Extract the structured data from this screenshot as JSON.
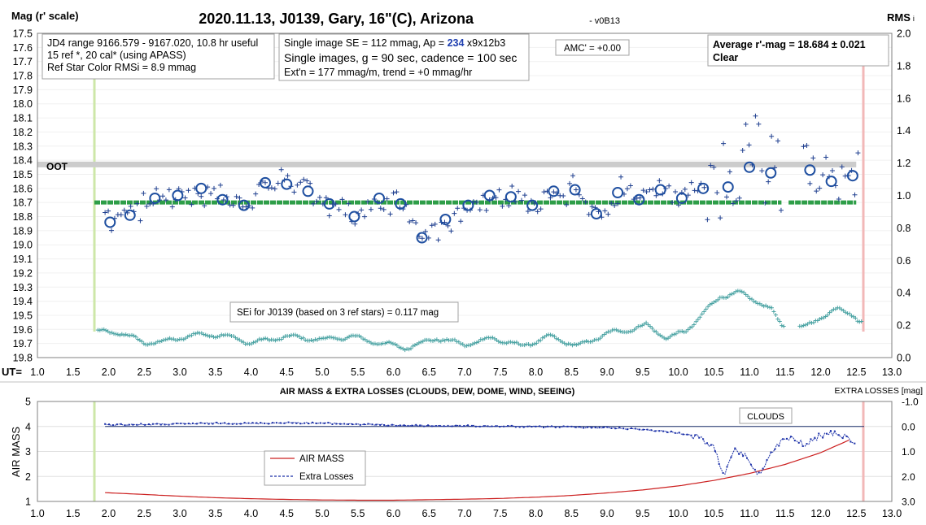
{
  "title": "2020.11.13, J0139, Gary, 16\"(C), Arizona",
  "version": "- v0B13",
  "left_axis_label": "Mag (r' scale)",
  "right_axis_label": "RMS",
  "right_axis_label_suffix": "i",
  "ut_label": "UT=",
  "oot_label": "OOT",
  "info_box_1": [
    "JD4 range 9166.579 - 9167.020, 10.8 hr useful",
    "15 ref *, 20 cal* (using APASS)",
    "Ref Star Color RMSi = 8.9 mmag"
  ],
  "info_box_2": {
    "line1_prefix": "Single image SE = 112 mmag, Ap = ",
    "line1_ap": "234",
    "line1_suffix": " x9x12b3",
    "line2": "Single images, g = 90 sec, cadence = 100 sec",
    "line3": "Ext'n = 177 mmag/m, trend = +0 mmag/hr"
  },
  "amc_label": "AMC' = +0.00",
  "average_box": {
    "line1": "Average r'-mag =  18.684 ± 0.021",
    "line2": "Clear"
  },
  "sei_label": "SEi for J0139 (based on 3 ref stars) = 0.117 mag",
  "bottom_title": "AIR MASS & EXTRA LOSSES (CLOUDS, DEW, DOME, WIND, SEEING)",
  "bottom_left_axis_label": "AIR MASS",
  "bottom_right_axis_label": "EXTRA LOSSES [mag]",
  "clouds_label": "CLOUDS",
  "legend": {
    "air_mass": "AIR MASS",
    "extra_losses": "Extra Losses"
  },
  "colors": {
    "individual": "#1f3f8f",
    "averages": "#1f4fa0",
    "rms": "#4aa3a3",
    "mean_line": "#2e9e48",
    "oot_line": "#cccccc",
    "start_line": "#cde7a8",
    "end_line": "#f2b8b8",
    "air_mass": "#cc2020",
    "extra_losses": "#1a2fa8"
  },
  "chart_data": [
    {
      "type": "scatter",
      "title": "2020.11.13, J0139, Gary, 16\"(C), Arizona",
      "xlabel": "UT",
      "ylabel": "Mag (r' scale)",
      "y2label": "RMS",
      "xlim": [
        1.0,
        13.0
      ],
      "ylim": [
        17.5,
        19.8
      ],
      "y_inverted": true,
      "y2lim": [
        0.0,
        2.0
      ],
      "x_ticks": [
        "1.0",
        "1.5",
        "2.0",
        "2.5",
        "3.0",
        "3.5",
        "4.0",
        "4.5",
        "5.0",
        "5.5",
        "6.0",
        "6.5",
        "7.0",
        "7.5",
        "8.0",
        "8.5",
        "9.0",
        "9.5",
        "10.0",
        "10.5",
        "11.0",
        "11.5",
        "12.0",
        "12.5",
        "13.0"
      ],
      "y_ticks": [
        "17.5",
        "17.6",
        "17.7",
        "17.8",
        "17.9",
        "18.0",
        "18.1",
        "18.2",
        "18.3",
        "18.4",
        "18.5",
        "18.6",
        "18.7",
        "18.8",
        "18.9",
        "19.0",
        "19.1",
        "19.2",
        "19.3",
        "19.4",
        "19.5",
        "19.6",
        "19.7",
        "19.8"
      ],
      "y2_ticks": [
        "0.0",
        "0.2",
        "0.4",
        "0.6",
        "0.8",
        "1.0",
        "1.2",
        "1.4",
        "1.6",
        "1.8",
        "2.0"
      ],
      "oot_level": 18.43,
      "mean_level": 18.7,
      "start_ut": 1.8,
      "end_ut": 12.6,
      "averages": [
        [
          2.02,
          18.84
        ],
        [
          2.3,
          18.79
        ],
        [
          2.65,
          18.67
        ],
        [
          2.97,
          18.65
        ],
        [
          3.3,
          18.6
        ],
        [
          3.6,
          18.68
        ],
        [
          3.9,
          18.72
        ],
        [
          4.2,
          18.56
        ],
        [
          4.5,
          18.57
        ],
        [
          4.8,
          18.62
        ],
        [
          5.1,
          18.71
        ],
        [
          5.45,
          18.8
        ],
        [
          5.8,
          18.67
        ],
        [
          6.1,
          18.71
        ],
        [
          6.4,
          18.95
        ],
        [
          6.73,
          18.82
        ],
        [
          7.05,
          18.72
        ],
        [
          7.35,
          18.65
        ],
        [
          7.65,
          18.66
        ],
        [
          7.95,
          18.72
        ],
        [
          8.25,
          18.62
        ],
        [
          8.55,
          18.61
        ],
        [
          8.85,
          18.78
        ],
        [
          9.15,
          18.63
        ],
        [
          9.45,
          18.68
        ],
        [
          9.75,
          18.61
        ],
        [
          10.05,
          18.67
        ],
        [
          10.35,
          18.6
        ],
        [
          10.7,
          18.59
        ],
        [
          11.0,
          18.45
        ],
        [
          11.3,
          18.49
        ],
        [
          11.85,
          18.47
        ],
        [
          12.15,
          18.55
        ],
        [
          12.45,
          18.51
        ]
      ],
      "rms_trend": [
        [
          1.85,
          0.16
        ],
        [
          2.2,
          0.15
        ],
        [
          2.5,
          0.09
        ],
        [
          2.8,
          0.1
        ],
        [
          3.2,
          0.14
        ],
        [
          3.6,
          0.14
        ],
        [
          4.0,
          0.09
        ],
        [
          4.5,
          0.13
        ],
        [
          5.0,
          0.11
        ],
        [
          5.4,
          0.13
        ],
        [
          5.8,
          0.09
        ],
        [
          6.2,
          0.06
        ],
        [
          6.6,
          0.12
        ],
        [
          7.0,
          0.08
        ],
        [
          7.4,
          0.12
        ],
        [
          7.8,
          0.07
        ],
        [
          8.2,
          0.13
        ],
        [
          8.6,
          0.07
        ],
        [
          9.0,
          0.15
        ],
        [
          9.3,
          0.17
        ],
        [
          9.55,
          0.2
        ],
        [
          9.85,
          0.12
        ],
        [
          10.1,
          0.16
        ],
        [
          10.3,
          0.25
        ],
        [
          10.6,
          0.38
        ],
        [
          10.85,
          0.4
        ],
        [
          11.1,
          0.35
        ],
        [
          11.3,
          0.3
        ],
        [
          11.45,
          0.2
        ],
        [
          11.75,
          0.18
        ],
        [
          12.0,
          0.25
        ],
        [
          12.25,
          0.3
        ],
        [
          12.45,
          0.27
        ],
        [
          12.55,
          0.22
        ]
      ]
    },
    {
      "type": "line",
      "title": "AIR MASS & EXTRA LOSSES (CLOUDS, DEW, DOME, WIND, SEEING)",
      "xlim": [
        1.0,
        13.0
      ],
      "ylim": [
        1,
        5
      ],
      "y2lim": [
        -1.0,
        3.0
      ],
      "y2_inverted": true,
      "x_ticks": [
        "1.0",
        "1.5",
        "2.0",
        "2.5",
        "3.0",
        "3.5",
        "4.0",
        "4.5",
        "5.0",
        "5.5",
        "6.0",
        "6.5",
        "7.0",
        "7.5",
        "8.0",
        "8.5",
        "9.0",
        "9.5",
        "10.0",
        "10.5",
        "11.0",
        "11.5",
        "12.0",
        "12.5",
        "13.0"
      ],
      "y_ticks": [
        "1",
        "2",
        "3",
        "4",
        "5"
      ],
      "y2_ticks": [
        "-1.0",
        "0.0",
        "1.0",
        "2.0",
        "3.0"
      ],
      "series": [
        {
          "name": "AIR MASS",
          "points": [
            [
              1.95,
              1.35
            ],
            [
              2.5,
              1.28
            ],
            [
              3.0,
              1.21
            ],
            [
              3.5,
              1.15
            ],
            [
              4.0,
              1.11
            ],
            [
              4.5,
              1.08
            ],
            [
              5.0,
              1.06
            ],
            [
              5.5,
              1.05
            ],
            [
              6.0,
              1.05
            ],
            [
              6.5,
              1.07
            ],
            [
              7.0,
              1.09
            ],
            [
              7.5,
              1.12
            ],
            [
              8.0,
              1.17
            ],
            [
              8.5,
              1.24
            ],
            [
              9.0,
              1.34
            ],
            [
              9.5,
              1.46
            ],
            [
              10.0,
              1.62
            ],
            [
              10.5,
              1.84
            ],
            [
              11.0,
              2.12
            ],
            [
              11.5,
              2.48
            ],
            [
              12.0,
              2.95
            ],
            [
              12.45,
              3.52
            ]
          ]
        },
        {
          "name": "Extra Losses",
          "points": [
            [
              1.95,
              -0.07
            ],
            [
              2.5,
              -0.08
            ],
            [
              3.0,
              -0.1
            ],
            [
              3.5,
              -0.13
            ],
            [
              4.0,
              -0.12
            ],
            [
              4.5,
              -0.15
            ],
            [
              5.0,
              -0.13
            ],
            [
              5.5,
              -0.09
            ],
            [
              6.0,
              -0.05
            ],
            [
              6.5,
              -0.03
            ],
            [
              7.0,
              -0.02
            ],
            [
              7.5,
              -0.01
            ],
            [
              8.0,
              0.01
            ],
            [
              8.5,
              0.02
            ],
            [
              9.0,
              0.05
            ],
            [
              9.5,
              0.12
            ],
            [
              10.0,
              0.25
            ],
            [
              10.3,
              0.45
            ],
            [
              10.5,
              0.85
            ],
            [
              10.65,
              1.95
            ],
            [
              10.8,
              0.95
            ],
            [
              11.0,
              1.3
            ],
            [
              11.1,
              2.0
            ],
            [
              11.2,
              1.6
            ],
            [
              11.4,
              0.7
            ],
            [
              11.5,
              0.5
            ],
            [
              11.6,
              0.5
            ],
            [
              11.8,
              0.75
            ],
            [
              12.0,
              0.35
            ],
            [
              12.2,
              0.25
            ],
            [
              12.4,
              0.45
            ],
            [
              12.45,
              0.7
            ],
            [
              12.5,
              0.55
            ]
          ]
        }
      ]
    }
  ]
}
